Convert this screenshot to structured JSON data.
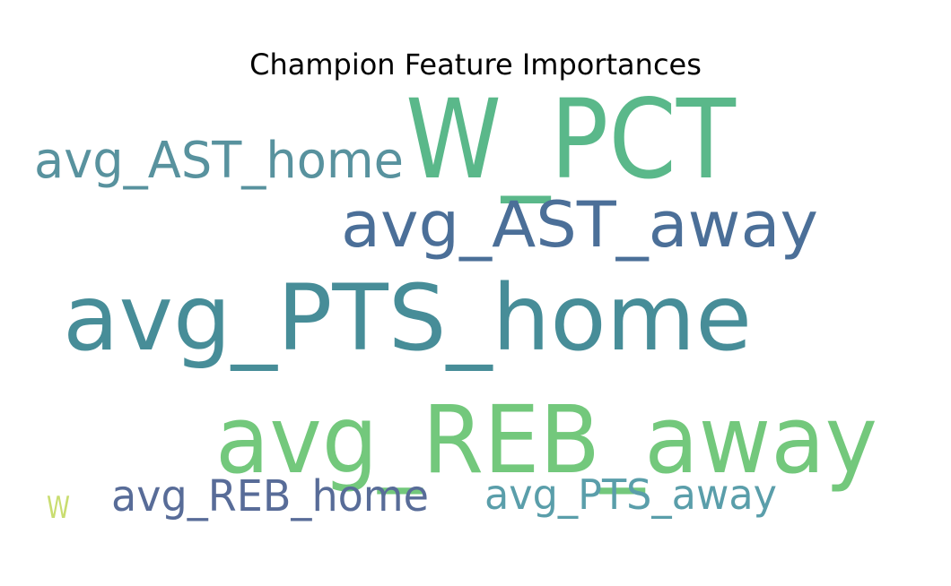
{
  "chart_data": {
    "type": "wordcloud",
    "title": "Champion Feature Importances",
    "words": [
      {
        "text": "W_PCT",
        "weight": 1.0,
        "color": "#5ab88a"
      },
      {
        "text": "avg_REB_away",
        "weight": 0.86,
        "color": "#73c87c"
      },
      {
        "text": "avg_PTS_home",
        "weight": 0.84,
        "color": "#478d98"
      },
      {
        "text": "avg_AST_away",
        "weight": 0.55,
        "color": "#4b6f98"
      },
      {
        "text": "avg_AST_home",
        "weight": 0.46,
        "color": "#58929e"
      },
      {
        "text": "avg_REB_home",
        "weight": 0.4,
        "color": "#586c98"
      },
      {
        "text": "avg_PTS_away",
        "weight": 0.38,
        "color": "#5a9eaa"
      },
      {
        "text": "W",
        "weight": 0.18,
        "color": "#c9dd70"
      }
    ]
  }
}
